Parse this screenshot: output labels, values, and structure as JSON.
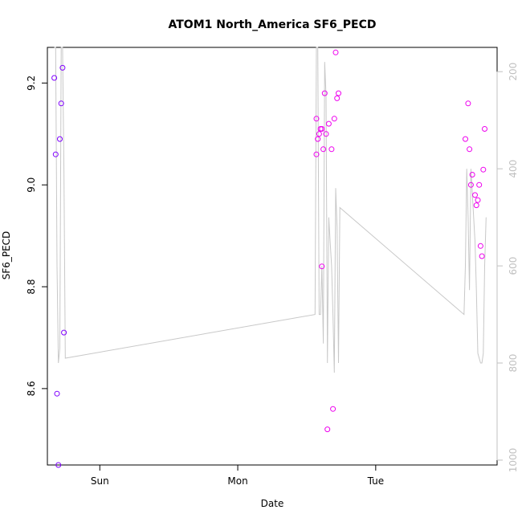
{
  "chart_data": {
    "type": "scatter",
    "title": "ATOM1 North_America SF6_PECD",
    "xlabel": "Date",
    "ylabel": "SF6_PECD",
    "x_ticks": [
      {
        "label": "Sun",
        "value": 1.0
      },
      {
        "label": "Mon",
        "value": 2.0
      },
      {
        "label": "Tue",
        "value": 3.0
      }
    ],
    "xlim": [
      0.62,
      3.88
    ],
    "ylim": [
      8.45,
      9.27
    ],
    "y_ticks": [
      8.6,
      8.8,
      9.0,
      9.2
    ],
    "y_tick_labels": [
      "8.6",
      "8.8",
      "9.0",
      "9.2"
    ],
    "y2_ticks": [
      200,
      400,
      600,
      800,
      1000
    ],
    "y2_tick_labels": [
      "200",
      "400",
      "600",
      "800",
      "1000"
    ],
    "y2_reversed": true,
    "y2_ylim": [
      1010,
      150
    ],
    "grid": false,
    "series": [
      {
        "color": "#8000ff",
        "points": [
          [
            0.67,
            9.21
          ],
          [
            0.68,
            9.06
          ],
          [
            0.69,
            8.59
          ],
          [
            0.7,
            8.45
          ],
          [
            0.71,
            9.09
          ],
          [
            0.72,
            9.16
          ],
          [
            0.73,
            9.23
          ],
          [
            0.74,
            8.71
          ]
        ]
      },
      {
        "color": "#ee00ee",
        "points": [
          [
            2.57,
            9.13
          ],
          [
            2.57,
            9.06
          ],
          [
            2.58,
            9.09
          ],
          [
            2.59,
            9.1
          ],
          [
            2.6,
            9.11
          ],
          [
            2.61,
            9.11
          ],
          [
            2.61,
            8.84
          ],
          [
            2.62,
            9.07
          ],
          [
            2.63,
            9.18
          ],
          [
            2.64,
            9.1
          ],
          [
            2.65,
            8.52
          ],
          [
            2.66,
            9.12
          ],
          [
            2.68,
            9.07
          ],
          [
            2.69,
            8.56
          ],
          [
            2.7,
            9.13
          ],
          [
            2.71,
            9.26
          ],
          [
            2.72,
            9.17
          ],
          [
            2.73,
            9.18
          ],
          [
            3.65,
            9.09
          ],
          [
            3.67,
            9.16
          ],
          [
            3.68,
            9.07
          ],
          [
            3.69,
            9.0
          ],
          [
            3.7,
            9.02
          ],
          [
            3.72,
            8.98
          ],
          [
            3.73,
            8.96
          ],
          [
            3.74,
            8.97
          ],
          [
            3.75,
            9.0
          ],
          [
            3.76,
            8.88
          ],
          [
            3.77,
            8.86
          ],
          [
            3.78,
            9.03
          ],
          [
            3.79,
            9.11
          ]
        ]
      }
    ],
    "pressure_line": {
      "color": "#c8c8c8",
      "points": [
        [
          0.67,
          150
        ],
        [
          0.68,
          150
        ],
        [
          0.69,
          600
        ],
        [
          0.7,
          800
        ],
        [
          0.71,
          770
        ],
        [
          0.72,
          150
        ],
        [
          0.73,
          150
        ],
        [
          0.74,
          400
        ],
        [
          0.75,
          790
        ],
        [
          2.56,
          700
        ],
        [
          2.57,
          150
        ],
        [
          2.58,
          150
        ],
        [
          2.59,
          700
        ],
        [
          2.6,
          700
        ],
        [
          2.61,
          600
        ],
        [
          2.62,
          760
        ],
        [
          2.63,
          180
        ],
        [
          2.64,
          250
        ],
        [
          2.65,
          800
        ],
        [
          2.66,
          500
        ],
        [
          2.67,
          550
        ],
        [
          2.68,
          600
        ],
        [
          2.69,
          700
        ],
        [
          2.7,
          820
        ],
        [
          2.71,
          440
        ],
        [
          2.72,
          520
        ],
        [
          2.73,
          800
        ],
        [
          2.74,
          480
        ],
        [
          3.64,
          700
        ],
        [
          3.65,
          600
        ],
        [
          3.66,
          400
        ],
        [
          3.67,
          500
        ],
        [
          3.68,
          650
        ],
        [
          3.69,
          400
        ],
        [
          3.7,
          450
        ],
        [
          3.71,
          500
        ],
        [
          3.72,
          550
        ],
        [
          3.73,
          650
        ],
        [
          3.74,
          780
        ],
        [
          3.75,
          790
        ],
        [
          3.76,
          800
        ],
        [
          3.77,
          800
        ],
        [
          3.78,
          780
        ],
        [
          3.79,
          600
        ],
        [
          3.8,
          500
        ]
      ]
    }
  }
}
